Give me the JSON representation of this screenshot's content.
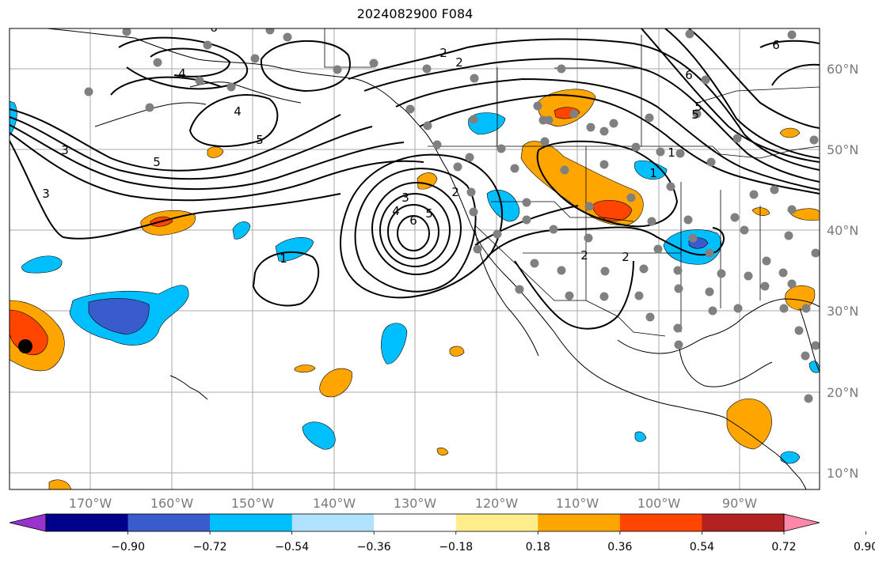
{
  "title": "2024082900 F084",
  "map": {
    "lon_ticks": [
      "170°W",
      "160°W",
      "150°W",
      "140°W",
      "130°W",
      "120°W",
      "110°W",
      "100°W",
      "90°W"
    ],
    "lat_ticks": [
      "60°N",
      "50°N",
      "40°N",
      "30°N",
      "20°N",
      "10°N"
    ],
    "contour_labels": [
      "6",
      "4",
      "2",
      "5",
      "5",
      "4",
      "3",
      "1",
      "2",
      "3",
      "4",
      "5",
      "6",
      "5",
      "2",
      "1",
      "5",
      "6",
      "6",
      "2",
      "2",
      "1",
      "3"
    ]
  },
  "colorbar": {
    "labels": [
      "−0.90",
      "−0.72",
      "−0.54",
      "−0.36",
      "−0.18",
      "0.18",
      "0.36",
      "0.54",
      "0.72",
      "0.90"
    ],
    "colors": [
      "#9933cc",
      "#00008b",
      "#3a5bcc",
      "#00bfff",
      "#b0e2ff",
      "#ffffff",
      "#ffec8b",
      "#ffa500",
      "#ff4500",
      "#b22222",
      "#ff88aa"
    ]
  }
}
